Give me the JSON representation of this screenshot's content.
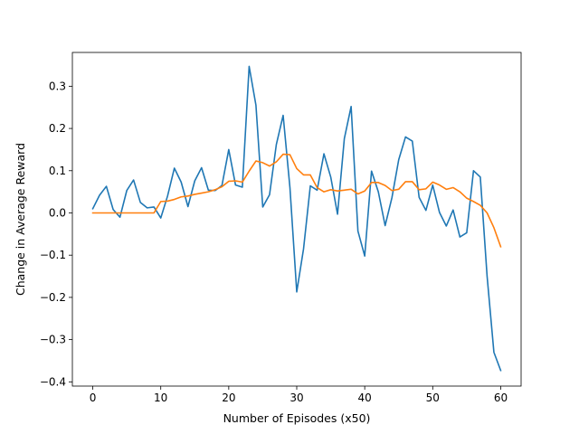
{
  "chart_data": {
    "type": "line",
    "title": "",
    "xlabel": "Number of Episodes (x50)",
    "ylabel": "Change in Average Reward",
    "xlim": [
      -3,
      63
    ],
    "ylim": [
      -0.41,
      0.38
    ],
    "xticks": [
      0,
      10,
      20,
      30,
      40,
      50,
      60
    ],
    "yticks": [
      -0.4,
      -0.3,
      -0.2,
      -0.1,
      0.0,
      0.1,
      0.2,
      0.3
    ],
    "grid": false,
    "legend": "none",
    "series": [
      {
        "color": "#1f77b4",
        "x": [
          0,
          1,
          2,
          3,
          4,
          5,
          6,
          7,
          8,
          9,
          10,
          11,
          12,
          13,
          14,
          15,
          16,
          17,
          18,
          19,
          20,
          21,
          22,
          23,
          24,
          25,
          26,
          27,
          28,
          29,
          30,
          31,
          32,
          33,
          34,
          35,
          36,
          37,
          38,
          39,
          40,
          41,
          42,
          43,
          44,
          45,
          46,
          47,
          48,
          49,
          50,
          51,
          52,
          53,
          54,
          55,
          56,
          57,
          58,
          59,
          60
        ],
        "values": [
          0.01,
          0.042,
          0.063,
          0.008,
          -0.01,
          0.053,
          0.078,
          0.025,
          0.012,
          0.014,
          -0.012,
          0.04,
          0.106,
          0.073,
          0.015,
          0.076,
          0.107,
          0.054,
          0.053,
          0.065,
          0.15,
          0.066,
          0.061,
          0.347,
          0.255,
          0.014,
          0.043,
          0.162,
          0.231,
          0.06,
          -0.187,
          -0.085,
          0.064,
          0.054,
          0.14,
          0.085,
          -0.003,
          0.176,
          0.252,
          -0.043,
          -0.102,
          0.099,
          0.05,
          -0.03,
          0.036,
          0.126,
          0.18,
          0.17,
          0.037,
          0.006,
          0.066,
          0.001,
          -0.031,
          0.007,
          -0.057,
          -0.047,
          0.1,
          0.085,
          -0.15,
          -0.33,
          -0.373
        ]
      },
      {
        "color": "#ff7f0e",
        "x": [
          0,
          1,
          2,
          3,
          4,
          5,
          6,
          7,
          8,
          9,
          10,
          11,
          12,
          13,
          14,
          15,
          16,
          17,
          18,
          19,
          20,
          21,
          22,
          23,
          24,
          25,
          26,
          27,
          28,
          29,
          30,
          31,
          32,
          33,
          34,
          35,
          36,
          37,
          38,
          39,
          40,
          41,
          42,
          43,
          44,
          45,
          46,
          47,
          48,
          49,
          50,
          51,
          52,
          53,
          54,
          55,
          56,
          57,
          58,
          59,
          60
        ],
        "values": [
          0.0,
          0.0,
          0.0,
          0.0,
          0.0,
          0.0,
          0.0,
          0.0,
          0.0,
          0.0,
          0.027,
          0.028,
          0.032,
          0.038,
          0.04,
          0.044,
          0.047,
          0.05,
          0.055,
          0.062,
          0.075,
          0.076,
          0.073,
          0.099,
          0.123,
          0.119,
          0.111,
          0.121,
          0.139,
          0.138,
          0.105,
          0.09,
          0.09,
          0.06,
          0.05,
          0.055,
          0.052,
          0.054,
          0.056,
          0.045,
          0.052,
          0.072,
          0.072,
          0.065,
          0.053,
          0.056,
          0.074,
          0.074,
          0.055,
          0.057,
          0.073,
          0.066,
          0.056,
          0.06,
          0.05,
          0.035,
          0.027,
          0.018,
          0.0,
          -0.035,
          -0.08
        ]
      }
    ]
  }
}
